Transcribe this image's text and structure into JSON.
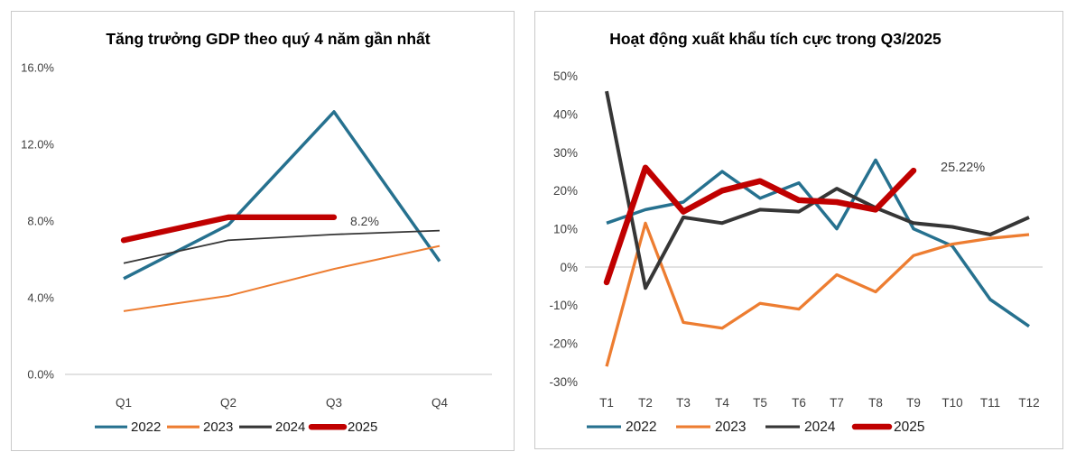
{
  "page": {
    "background": "#ffffff"
  },
  "styles": {
    "panel_border": "#C9C9C9",
    "gridline": "#D9D9D9",
    "tick_text": "#404040",
    "title_text": "#000000",
    "accent_2022": "#26718F",
    "accent_2023": "#ED7D31",
    "accent_2024": "#363636",
    "accent_2025": "#C00000",
    "annotation_green": "#1E8C3E"
  },
  "chart_data": [
    {
      "type": "line",
      "title": "Tăng trưởng GDP theo quý 4 năm gần nhất",
      "categories": [
        "Q1",
        "Q2",
        "Q3",
        "Q4"
      ],
      "y_axis": {
        "tick_values": [
          16,
          12,
          8,
          4,
          0
        ],
        "tick_labels": [
          "16.0%",
          "12.0%",
          "8.0%",
          "4.0%",
          "0.0%"
        ],
        "ylim": [
          0,
          16
        ]
      },
      "series": [
        {
          "name": "2022",
          "color": "#26718F",
          "values": [
            5.0,
            7.8,
            13.7,
            5.9
          ]
        },
        {
          "name": "2023",
          "color": "#ED7D31",
          "values": [
            3.3,
            4.1,
            5.5,
            6.7
          ]
        },
        {
          "name": "2024",
          "color": "#363636",
          "values": [
            5.8,
            7.0,
            7.3,
            7.5
          ]
        },
        {
          "name": "2025",
          "color": "#C00000",
          "values": [
            7.0,
            8.2,
            8.2,
            null
          ]
        }
      ],
      "annotation": {
        "text": "8.2%",
        "color": "#000000"
      },
      "legend": [
        "2022",
        "2023",
        "2024",
        "2025"
      ],
      "legend_position": "bottom",
      "grid": "zero-line-only"
    },
    {
      "type": "line",
      "title": "Hoạt động xuất khẩu tích cực trong Q3/2025",
      "categories": [
        "T1",
        "T2",
        "T3",
        "T4",
        "T5",
        "T6",
        "T7",
        "T8",
        "T9",
        "T10",
        "T11",
        "T12"
      ],
      "y_axis": {
        "tick_values": [
          50,
          40,
          30,
          20,
          10,
          0,
          -10,
          -20,
          -30
        ],
        "tick_labels": [
          "50%",
          "40%",
          "30%",
          "20%",
          "10%",
          "0%",
          "-10%",
          "-20%",
          "-30%"
        ],
        "ylim": [
          -30,
          50
        ]
      },
      "series": [
        {
          "name": "2022",
          "color": "#26718F",
          "values": [
            11.5,
            15,
            17,
            25,
            18,
            22,
            10,
            28,
            10,
            5.5,
            -8.5,
            -15.5
          ]
        },
        {
          "name": "2023",
          "color": "#ED7D31",
          "values": [
            -26,
            11.5,
            -14.5,
            -16,
            -9.5,
            -11,
            -2,
            -6.5,
            3,
            6,
            7.5,
            8.5
          ]
        },
        {
          "name": "2024",
          "color": "#363636",
          "values": [
            46,
            -5.5,
            13,
            11.5,
            15,
            14.5,
            20.5,
            15.5,
            11.5,
            10.5,
            8.5,
            13
          ]
        },
        {
          "name": "2025",
          "color": "#C00000",
          "values": [
            -4,
            26,
            14.5,
            20,
            22.5,
            17.5,
            17,
            15,
            25.22,
            null,
            null,
            null
          ]
        }
      ],
      "annotation": {
        "text": "25.22%",
        "color": "#1E8C3E"
      },
      "legend": [
        "2022",
        "2023",
        "2024",
        "2025"
      ],
      "legend_position": "bottom",
      "grid": "zero-line-only"
    }
  ]
}
